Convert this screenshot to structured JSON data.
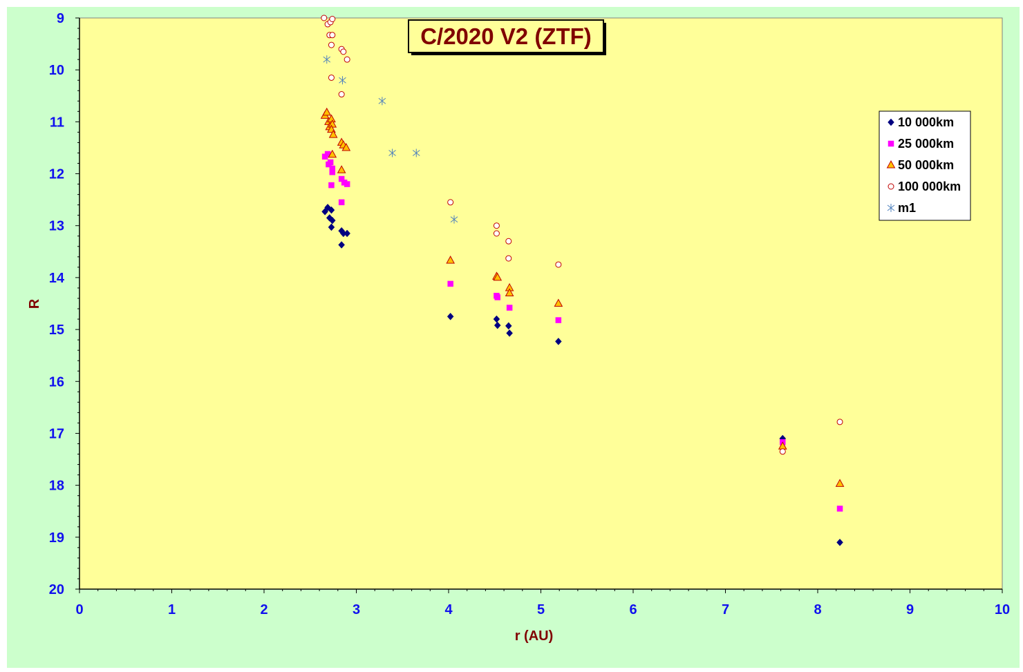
{
  "chart_data": {
    "type": "scatter",
    "title": "C/2020 V2 (ZTF)",
    "xlabel": "r (AU)",
    "ylabel": "R",
    "xlim": [
      0,
      10
    ],
    "ylim": [
      9,
      20
    ],
    "y_inverted": true,
    "x_ticks": [
      "0",
      "1",
      "2",
      "3",
      "4",
      "5",
      "6",
      "7",
      "8",
      "9",
      "10"
    ],
    "y_ticks": [
      "9",
      "10",
      "11",
      "12",
      "13",
      "14",
      "15",
      "16",
      "17",
      "18",
      "19",
      "20"
    ],
    "grid": false,
    "legend_position": "top-right",
    "colors": {
      "outer_background": "#ccffcc",
      "plot_background": "#ffff99",
      "tick_labels": "#1010ee",
      "axis_labels": "#800000"
    },
    "series": [
      {
        "name": "10 000km",
        "marker": "diamond",
        "color": "#000080",
        "points": [
          [
            2.66,
            12.73
          ],
          [
            2.69,
            12.65
          ],
          [
            2.71,
            12.85
          ],
          [
            2.73,
            12.7
          ],
          [
            2.74,
            12.9
          ],
          [
            2.73,
            13.03
          ],
          [
            2.84,
            13.1
          ],
          [
            2.86,
            13.15
          ],
          [
            2.9,
            13.15
          ],
          [
            2.84,
            13.37
          ],
          [
            4.02,
            14.75
          ],
          [
            4.52,
            14.8
          ],
          [
            4.53,
            14.92
          ],
          [
            4.65,
            14.93
          ],
          [
            4.66,
            15.07
          ],
          [
            5.19,
            15.23
          ],
          [
            7.62,
            17.1
          ],
          [
            8.24,
            19.1
          ]
        ]
      },
      {
        "name": "25 000km",
        "marker": "square",
        "color": "#ff00ff",
        "points": [
          [
            2.66,
            11.67
          ],
          [
            2.69,
            11.62
          ],
          [
            2.7,
            11.82
          ],
          [
            2.72,
            11.78
          ],
          [
            2.74,
            11.9
          ],
          [
            2.74,
            11.97
          ],
          [
            2.73,
            12.22
          ],
          [
            2.84,
            12.1
          ],
          [
            2.87,
            12.17
          ],
          [
            2.9,
            12.2
          ],
          [
            2.84,
            12.55
          ],
          [
            4.02,
            14.12
          ],
          [
            4.52,
            14.35
          ],
          [
            4.53,
            14.38
          ],
          [
            4.66,
            14.58
          ],
          [
            5.19,
            14.82
          ],
          [
            7.62,
            17.17
          ],
          [
            8.24,
            18.45
          ]
        ]
      },
      {
        "name": "50 000km",
        "marker": "triangle",
        "color": "#ffc000",
        "stroke": "#c00000",
        "points": [
          [
            2.66,
            10.88
          ],
          [
            2.68,
            10.82
          ],
          [
            2.7,
            11.0
          ],
          [
            2.71,
            11.1
          ],
          [
            2.73,
            10.95
          ],
          [
            2.74,
            11.05
          ],
          [
            2.73,
            11.15
          ],
          [
            2.75,
            11.25
          ],
          [
            2.84,
            11.4
          ],
          [
            2.86,
            11.45
          ],
          [
            2.89,
            11.5
          ],
          [
            2.74,
            11.63
          ],
          [
            2.84,
            11.93
          ],
          [
            4.02,
            13.67
          ],
          [
            4.52,
            13.98
          ],
          [
            4.53,
            14.0
          ],
          [
            4.66,
            14.2
          ],
          [
            4.66,
            14.3
          ],
          [
            5.19,
            14.5
          ],
          [
            7.62,
            17.25
          ],
          [
            8.24,
            17.97
          ]
        ]
      },
      {
        "name": "100 000km",
        "marker": "circle",
        "color": "#ffffff",
        "stroke": "#c00000",
        "points": [
          [
            2.65,
            9.0
          ],
          [
            2.69,
            9.12
          ],
          [
            2.72,
            9.08
          ],
          [
            2.74,
            9.02
          ],
          [
            2.71,
            9.33
          ],
          [
            2.74,
            9.33
          ],
          [
            2.73,
            9.52
          ],
          [
            2.84,
            9.6
          ],
          [
            2.86,
            9.65
          ],
          [
            2.9,
            9.8
          ],
          [
            2.73,
            10.15
          ],
          [
            2.84,
            10.47
          ],
          [
            4.02,
            12.55
          ],
          [
            4.52,
            13.0
          ],
          [
            4.52,
            13.15
          ],
          [
            4.65,
            13.3
          ],
          [
            4.65,
            13.63
          ],
          [
            5.19,
            13.75
          ],
          [
            7.62,
            17.35
          ],
          [
            8.24,
            16.78
          ]
        ]
      },
      {
        "name": "m1",
        "marker": "asterisk",
        "color": "#4f81bd",
        "points": [
          [
            2.68,
            9.8
          ],
          [
            2.85,
            10.2
          ],
          [
            3.28,
            10.6
          ],
          [
            3.39,
            11.6
          ],
          [
            3.65,
            11.6
          ],
          [
            4.06,
            12.88
          ]
        ]
      }
    ]
  }
}
